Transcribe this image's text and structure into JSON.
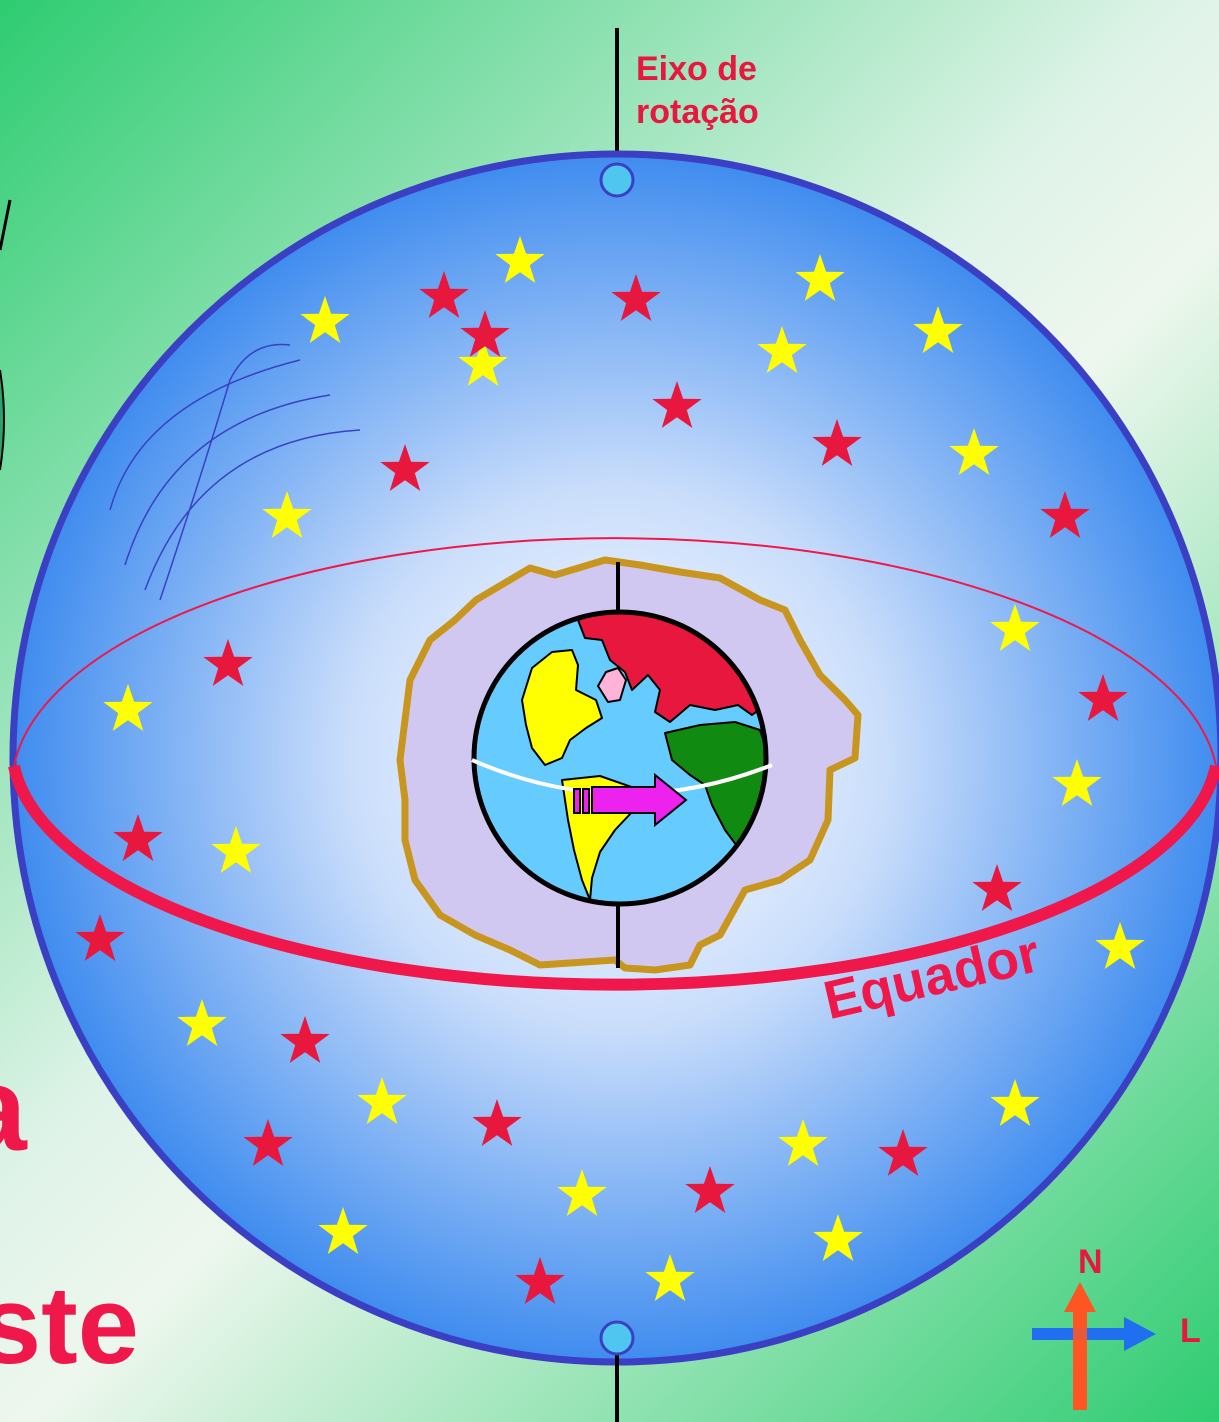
{
  "labels": {
    "axis_line1": "Eixo de",
    "axis_line2": "rotação",
    "equator": "Equador",
    "north": "N",
    "east": "L"
  },
  "left_text": {
    "fragment1": "a",
    "fragment2": "ste"
  },
  "colors": {
    "sphere_outline": "#3a3fc4",
    "equator": "#f0174a",
    "star_yellow": "#ffff00",
    "star_red": "#e8173d",
    "label_red": "#e8173d",
    "pole_dot": "#4fc6f0",
    "earth_ocean": "#66ccff",
    "halo_fill": "#d0c8f0",
    "halo_outline": "#c8961e",
    "arrow_magenta": "#ee22ee",
    "north_arrow": "#ff5522",
    "east_arrow": "#1f6ff0"
  }
}
